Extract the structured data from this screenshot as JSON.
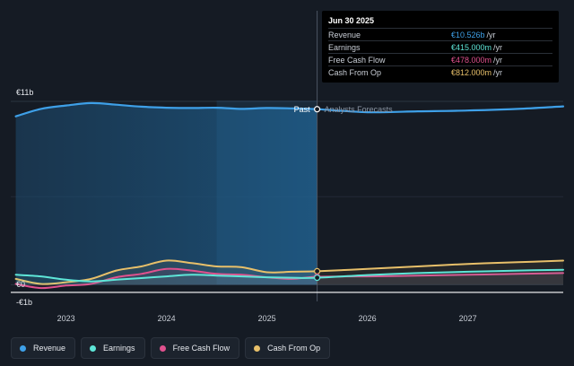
{
  "tooltip": {
    "date": "Jun 30 2025",
    "rows": [
      {
        "name": "Revenue",
        "value": "€10.526b",
        "unit": "/yr"
      },
      {
        "name": "Earnings",
        "value": "€415.000m",
        "unit": "/yr"
      },
      {
        "name": "Free Cash Flow",
        "value": "€478.000m",
        "unit": "/yr"
      },
      {
        "name": "Cash From Op",
        "value": "€812.000m",
        "unit": "/yr"
      }
    ]
  },
  "legend": [
    {
      "name": "Revenue",
      "color": "#3ea0e8"
    },
    {
      "name": "Earnings",
      "color": "#5ee6d8"
    },
    {
      "name": "Free Cash Flow",
      "color": "#e0518e"
    },
    {
      "name": "Cash From Op",
      "color": "#e8c06a"
    }
  ],
  "chart_data": {
    "type": "line",
    "xlim": [
      2022.45,
      2027.95
    ],
    "ylim": [
      -1,
      11
    ],
    "ytick_labels": [
      {
        "value": 11,
        "label": "€11b"
      },
      {
        "value": 0,
        "label": "€0"
      },
      {
        "value": -1,
        "label": "-€1b"
      }
    ],
    "xtick_labels": [
      {
        "value": 2023,
        "label": "2023"
      },
      {
        "value": 2024,
        "label": "2024"
      },
      {
        "value": 2025,
        "label": "2025"
      },
      {
        "value": 2026,
        "label": "2026"
      },
      {
        "value": 2027,
        "label": "2027"
      }
    ],
    "divider_x": 2025.5,
    "past_label": "Past",
    "forecast_label": "Analysts Forecasts",
    "series": [
      {
        "name": "Revenue",
        "color": "#3ea0e8",
        "x": [
          2022.5,
          2022.75,
          2023.0,
          2023.25,
          2023.5,
          2023.75,
          2024.0,
          2024.25,
          2024.5,
          2024.75,
          2025.0,
          2025.25,
          2025.5,
          2026.0,
          2026.5,
          2027.0,
          2027.5,
          2027.95
        ],
        "y": [
          10.1,
          10.55,
          10.75,
          10.9,
          10.8,
          10.68,
          10.62,
          10.6,
          10.62,
          10.55,
          10.6,
          10.58,
          10.53,
          10.35,
          10.4,
          10.45,
          10.55,
          10.7
        ]
      },
      {
        "name": "Earnings",
        "color": "#5ee6d8",
        "x": [
          2022.5,
          2022.75,
          2023.0,
          2023.25,
          2023.5,
          2023.75,
          2024.0,
          2024.25,
          2024.5,
          2024.75,
          2025.0,
          2025.25,
          2025.5,
          2026.0,
          2026.5,
          2027.0,
          2027.5,
          2027.95
        ],
        "y": [
          0.6,
          0.5,
          0.3,
          0.2,
          0.3,
          0.4,
          0.5,
          0.6,
          0.55,
          0.5,
          0.45,
          0.42,
          0.42,
          0.58,
          0.7,
          0.78,
          0.85,
          0.9
        ]
      },
      {
        "name": "Free Cash Flow",
        "color": "#e0518e",
        "x": [
          2022.5,
          2022.75,
          2023.0,
          2023.25,
          2023.5,
          2023.75,
          2024.0,
          2024.25,
          2024.5,
          2024.75,
          2025.0,
          2025.25,
          2025.5,
          2026.0,
          2026.5,
          2027.0,
          2027.5,
          2027.95
        ],
        "y": [
          0.05,
          -0.2,
          -0.05,
          0.05,
          0.45,
          0.65,
          0.95,
          0.85,
          0.65,
          0.6,
          0.45,
          0.35,
          0.48,
          0.5,
          0.55,
          0.6,
          0.65,
          0.7
        ]
      },
      {
        "name": "Cash From Op",
        "color": "#e8c06a",
        "x": [
          2022.5,
          2022.75,
          2023.0,
          2023.25,
          2023.5,
          2023.75,
          2024.0,
          2024.25,
          2024.5,
          2024.75,
          2025.0,
          2025.25,
          2025.5,
          2026.0,
          2026.5,
          2027.0,
          2027.5,
          2027.95
        ],
        "y": [
          0.35,
          0.05,
          0.15,
          0.35,
          0.85,
          1.1,
          1.45,
          1.3,
          1.1,
          1.05,
          0.75,
          0.78,
          0.81,
          0.95,
          1.1,
          1.25,
          1.35,
          1.45
        ]
      }
    ]
  }
}
